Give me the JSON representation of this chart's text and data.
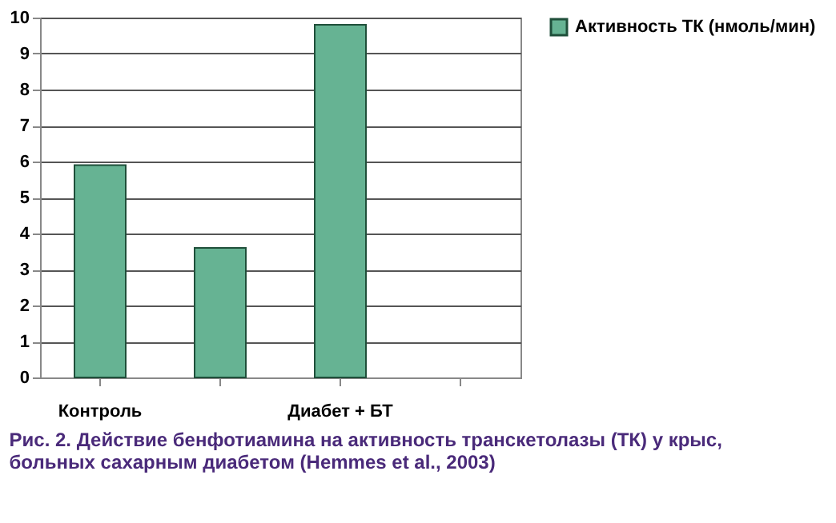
{
  "chart_data": {
    "type": "bar",
    "title": "Рис. 2. Действие бенфотиамина на активность транскетолазы (ТК) у крыс, больных сахарным диабетом (Hemmes et al., 2003)",
    "categories": [
      "Контроль",
      null,
      "Диабет + БТ",
      null
    ],
    "series": [
      {
        "name": "Активность ТК (нмоль/мин)",
        "color": "#66b393",
        "values": [
          5.9,
          3.6,
          9.8,
          null
        ]
      }
    ],
    "ylim": [
      0,
      10
    ],
    "yticks": [
      0,
      1,
      2,
      3,
      4,
      5,
      6,
      7,
      8,
      9,
      10
    ],
    "grid": "y",
    "legend": "right"
  }
}
